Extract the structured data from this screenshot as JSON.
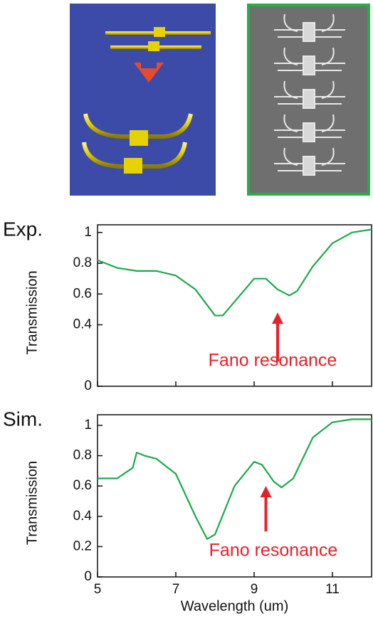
{
  "chart_data": [
    {
      "type": "line",
      "panel_label": "Exp.",
      "y_label": "Transmission",
      "xlim": [
        5,
        12
      ],
      "xticks": [
        5,
        7,
        9,
        11
      ],
      "x_tick_labels": false,
      "ylim": [
        0,
        1.05
      ],
      "yticks": [
        0,
        0.4,
        0.6,
        0.8,
        1
      ],
      "x": [
        5,
        5.5,
        6,
        6.5,
        7,
        7.5,
        8,
        8.2,
        8.5,
        9,
        9.3,
        9.6,
        9.9,
        10.1,
        10.5,
        11,
        11.5,
        12
      ],
      "series": [
        {
          "color": "#1aaa4a",
          "values": [
            0.82,
            0.77,
            0.75,
            0.75,
            0.72,
            0.63,
            0.46,
            0.46,
            0.55,
            0.7,
            0.7,
            0.63,
            0.59,
            0.62,
            0.78,
            0.93,
            1.0,
            1.02
          ]
        }
      ],
      "annotation": "Fano resonance"
    },
    {
      "type": "line",
      "panel_label": "Sim.",
      "y_label": "Transmission",
      "x_label": "Wavelength (um)",
      "xlim": [
        5,
        12
      ],
      "xticks": [
        5,
        7,
        9,
        11
      ],
      "x_tick_labels": true,
      "ylim": [
        0,
        1.07
      ],
      "yticks": [
        0,
        0.2,
        0.4,
        0.6,
        0.8,
        1
      ],
      "x": [
        5,
        5.5,
        5.9,
        6,
        6.2,
        6.5,
        7,
        7.5,
        7.8,
        8,
        8.5,
        9,
        9.2,
        9.5,
        9.7,
        10,
        10.5,
        11,
        11.5,
        12
      ],
      "series": [
        {
          "color": "#1aaa4a",
          "values": [
            0.65,
            0.65,
            0.72,
            0.82,
            0.8,
            0.78,
            0.68,
            0.4,
            0.25,
            0.28,
            0.6,
            0.76,
            0.74,
            0.63,
            0.59,
            0.65,
            0.92,
            1.02,
            1.04,
            1.04
          ]
        }
      ],
      "annotation": "Fano resonance"
    }
  ]
}
